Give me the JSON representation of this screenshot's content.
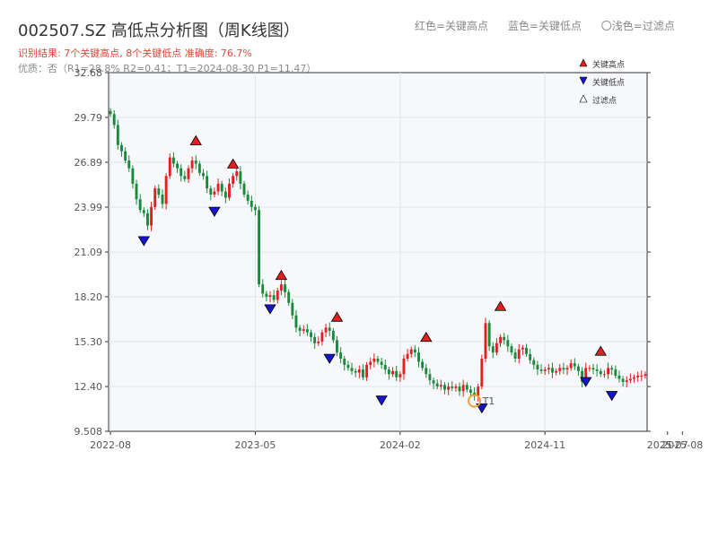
{
  "header": {
    "title": "002507.SZ 高低点分析图（周K线图）",
    "legend_red": "红色=关键高点",
    "legend_blue": "蓝色=关键低点",
    "legend_light": "〇浅色=过滤点",
    "result": "识别结果: 7个关键高点, 8个关键低点  准确度: 76.7%",
    "quality": "优质：否（R1=28.8%  R2=0.41；T1=2024-08-30 P1=11.47）"
  },
  "colors": {
    "up": "#e02020",
    "down": "#1a8a3a",
    "high_marker": "#e02020",
    "low_marker": "#1515d0",
    "filter_marker": "#f0a030",
    "plot_bg": "#f6f8fb"
  },
  "chart_data": {
    "type": "candlestick",
    "y_ticks": [
      "32.68",
      "29.79",
      "26.89",
      "23.99",
      "21.09",
      "18.20",
      "15.30",
      "12.40",
      "9.508"
    ],
    "ylim": [
      9.508,
      32.68
    ],
    "x_ticks": [
      "2022-08",
      "2023-05",
      "2024-02",
      "2024-11",
      "2025-07",
      "2025-08"
    ],
    "x_tick_weeks": [
      0,
      39,
      78,
      117,
      150,
      154
    ],
    "legend": {
      "high": "关键高点",
      "low": "关键低点",
      "filtered": "过滤点"
    },
    "filtered_label": "T1",
    "weekly_close": [
      30.0,
      29.3,
      28.0,
      27.6,
      27.0,
      26.5,
      25.5,
      24.5,
      23.8,
      23.6,
      22.8,
      24.0,
      25.2,
      24.8,
      24.2,
      26.0,
      27.2,
      26.8,
      26.5,
      26.0,
      25.8,
      26.5,
      27.0,
      26.8,
      26.2,
      26.0,
      25.2,
      24.8,
      25.0,
      25.5,
      25.0,
      24.6,
      25.5,
      26.0,
      26.3,
      25.5,
      24.8,
      24.4,
      24.0,
      23.8,
      19.0,
      18.4,
      18.2,
      18.3,
      18.0,
      18.6,
      19.0,
      18.5,
      17.8,
      17.0,
      16.2,
      16.0,
      16.1,
      15.9,
      15.6,
      15.2,
      15.3,
      15.9,
      16.2,
      16.0,
      15.4,
      14.6,
      14.2,
      13.8,
      13.6,
      13.4,
      13.3,
      13.5,
      13.0,
      13.8,
      14.0,
      14.2,
      14.0,
      13.8,
      13.5,
      13.2,
      13.4,
      13.0,
      13.2,
      14.2,
      14.5,
      14.8,
      14.6,
      14.0,
      13.6,
      13.2,
      12.8,
      12.6,
      12.4,
      12.5,
      12.2,
      12.4,
      12.3,
      12.4,
      12.1,
      12.5,
      12.2,
      12.0,
      11.8,
      12.4,
      14.2,
      16.5,
      15.0,
      14.6,
      15.2,
      15.6,
      15.4,
      15.0,
      14.6,
      14.2,
      14.8,
      14.9,
      14.5,
      14.1,
      13.8,
      13.5,
      13.4,
      13.5,
      13.6,
      13.3,
      13.4,
      13.6,
      13.5,
      13.6,
      13.9,
      13.7,
      13.4,
      12.7,
      13.6,
      13.6,
      13.5,
      13.4,
      13.2,
      13.2,
      13.6,
      13.5,
      13.1,
      12.9,
      12.7,
      12.8,
      12.9,
      13.0,
      13.1,
      13.1,
      13.2
    ],
    "key_highs": [
      {
        "week": 23,
        "value": 27.9
      },
      {
        "week": 33,
        "value": 26.4
      },
      {
        "week": 46,
        "value": 19.2
      },
      {
        "week": 61,
        "value": 16.5
      },
      {
        "week": 85,
        "value": 15.2
      },
      {
        "week": 105,
        "value": 17.2
      },
      {
        "week": 132,
        "value": 14.3
      }
    ],
    "key_lows": [
      {
        "week": 9,
        "value": 22.2
      },
      {
        "week": 28,
        "value": 24.1
      },
      {
        "week": 43,
        "value": 17.8
      },
      {
        "week": 59,
        "value": 14.6
      },
      {
        "week": 73,
        "value": 11.9
      },
      {
        "week": 100,
        "value": 11.4
      },
      {
        "week": 128,
        "value": 13.1
      },
      {
        "week": 135,
        "value": 12.2
      }
    ],
    "filtered_points": [
      {
        "week": 98,
        "value": 11.47
      }
    ]
  }
}
